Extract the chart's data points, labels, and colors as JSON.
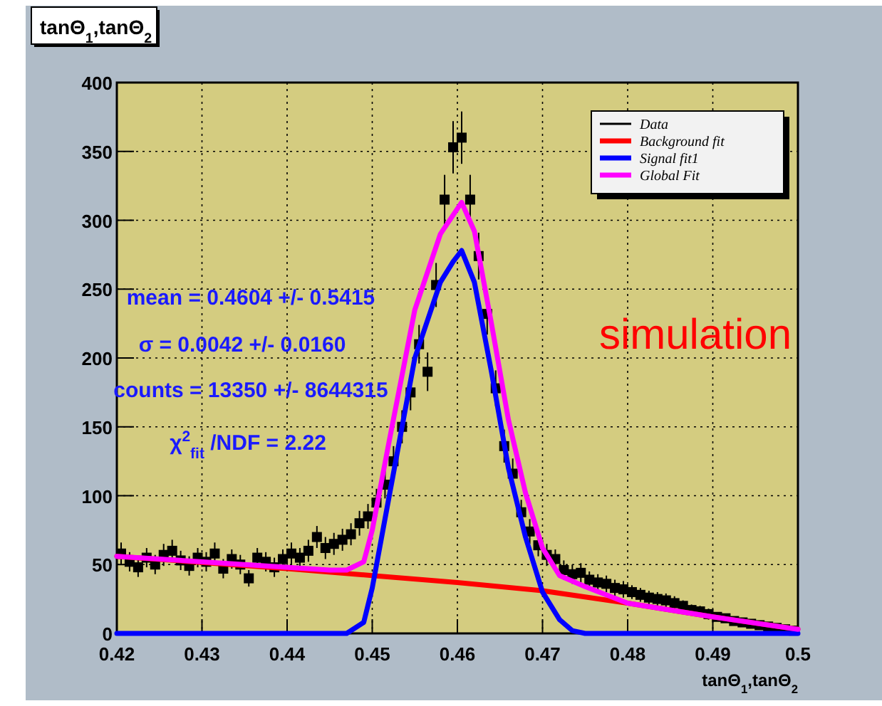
{
  "chart_data": {
    "type": "line",
    "title": "tanΘ$_{1}$,tanΘ$_{2}$",
    "xlabel": "tanΘ$_{1}$,tanΘ$_{2}$",
    "xlim": [
      0.42,
      0.5
    ],
    "ylim": [
      0,
      400
    ],
    "xticks": [
      0.42,
      0.43,
      0.44,
      0.45,
      0.46,
      0.47,
      0.48,
      0.49,
      {
        "value": 0.5,
        "label": "0.5"
      }
    ],
    "yticks": [
      0,
      50,
      100,
      150,
      200,
      250,
      300,
      350,
      400
    ],
    "grid": true,
    "legend": "top right",
    "annotations": [
      "mean = 0.4604 +/- 0.5415",
      "σ = 0.0042 +/- 0.0160",
      "counts = 13350 +/- 8644315",
      "χ$^{2}$$_{fit}$ /NDF = 2.22",
      "simulation"
    ],
    "series": [
      {
        "name": "Data",
        "type": "scatter",
        "marker": "square",
        "color": "#000000",
        "x": [
          0.4205,
          0.4215,
          0.4225,
          0.4235,
          0.4245,
          0.4255,
          0.4265,
          0.4275,
          0.4285,
          0.4295,
          0.4305,
          0.4315,
          0.4325,
          0.4335,
          0.4345,
          0.4355,
          0.4365,
          0.4375,
          0.4385,
          0.4395,
          0.4405,
          0.4415,
          0.4425,
          0.4435,
          0.4445,
          0.4455,
          0.4465,
          0.4475,
          0.4485,
          0.4495,
          0.4505,
          0.4515,
          0.4525,
          0.4535,
          0.4545,
          0.4555,
          0.4565,
          0.4575,
          0.4585,
          0.4595,
          0.4605,
          0.4615,
          0.4625,
          0.4635,
          0.4645,
          0.4655,
          0.4665,
          0.4675,
          0.4685,
          0.4695,
          0.4705,
          0.4715,
          0.4725,
          0.4735,
          0.4745,
          0.4755,
          0.4765,
          0.4775,
          0.4785,
          0.4795,
          0.4805,
          0.4815,
          0.4825,
          0.4835,
          0.4845,
          0.4855,
          0.4865,
          0.4875,
          0.4885,
          0.4895,
          0.4905,
          0.4915,
          0.4925,
          0.4935,
          0.4945,
          0.4955,
          0.4965,
          0.4975,
          0.4985,
          0.4995
        ],
        "values": [
          58,
          52,
          48,
          55,
          50,
          57,
          60,
          53,
          49,
          55,
          52,
          58,
          47,
          54,
          50,
          40,
          55,
          52,
          48,
          54,
          58,
          55,
          60,
          70,
          62,
          65,
          68,
          72,
          80,
          85,
          95,
          108,
          125,
          150,
          175,
          210,
          190,
          253,
          315,
          353,
          360,
          315,
          274,
          232,
          178,
          136,
          116,
          88,
          74,
          64,
          57,
          54,
          46,
          43,
          44,
          39,
          37,
          36,
          33,
          32,
          30,
          28,
          26,
          25,
          24,
          22,
          20,
          17,
          16,
          14,
          12,
          11,
          9,
          8,
          7,
          6,
          5,
          4,
          3,
          2
        ],
        "errors": [
          8,
          7,
          7,
          7,
          7,
          8,
          8,
          7,
          7,
          7,
          7,
          8,
          7,
          7,
          7,
          6,
          7,
          7,
          7,
          7,
          8,
          7,
          8,
          8,
          8,
          8,
          8,
          8,
          9,
          9,
          10,
          10,
          11,
          12,
          13,
          14,
          14,
          16,
          18,
          19,
          19,
          18,
          17,
          15,
          13,
          12,
          11,
          9,
          9,
          8,
          8,
          7,
          7,
          7,
          7,
          6,
          6,
          6,
          6,
          6,
          5,
          5,
          5,
          5,
          5,
          5,
          4,
          4,
          4,
          4,
          3,
          3,
          3,
          3,
          3,
          2,
          2,
          2,
          2,
          1
        ]
      },
      {
        "name": "Background fit",
        "color": "#ff0000",
        "x": [
          0.42,
          0.44,
          0.45,
          0.46,
          0.47,
          0.48,
          0.49,
          0.5
        ],
        "values": [
          56,
          47,
          42,
          37,
          31,
          22,
          12,
          3
        ]
      },
      {
        "name": "Signal fit1",
        "color": "#0000ff",
        "x": [
          0.42,
          0.447,
          0.449,
          0.45,
          0.452,
          0.455,
          0.458,
          0.4595,
          0.4605,
          0.462,
          0.464,
          0.466,
          0.468,
          0.47,
          0.472,
          0.4735,
          0.475,
          0.5
        ],
        "values": [
          0,
          0,
          8,
          33,
          100,
          200,
          255,
          270,
          278,
          255,
          190,
          120,
          70,
          30,
          10,
          2,
          0,
          0
        ]
      },
      {
        "name": "Global Fit",
        "color": "#ff00ff",
        "x": [
          0.42,
          0.445,
          0.447,
          0.449,
          0.45,
          0.452,
          0.455,
          0.458,
          0.4605,
          0.462,
          0.464,
          0.466,
          0.468,
          0.47,
          0.472,
          0.475,
          0.48,
          0.49,
          0.5
        ],
        "values": [
          56,
          46,
          46,
          52,
          75,
          140,
          235,
          290,
          313,
          292,
          225,
          155,
          102,
          62,
          42,
          34,
          22,
          12,
          3
        ]
      }
    ]
  }
}
